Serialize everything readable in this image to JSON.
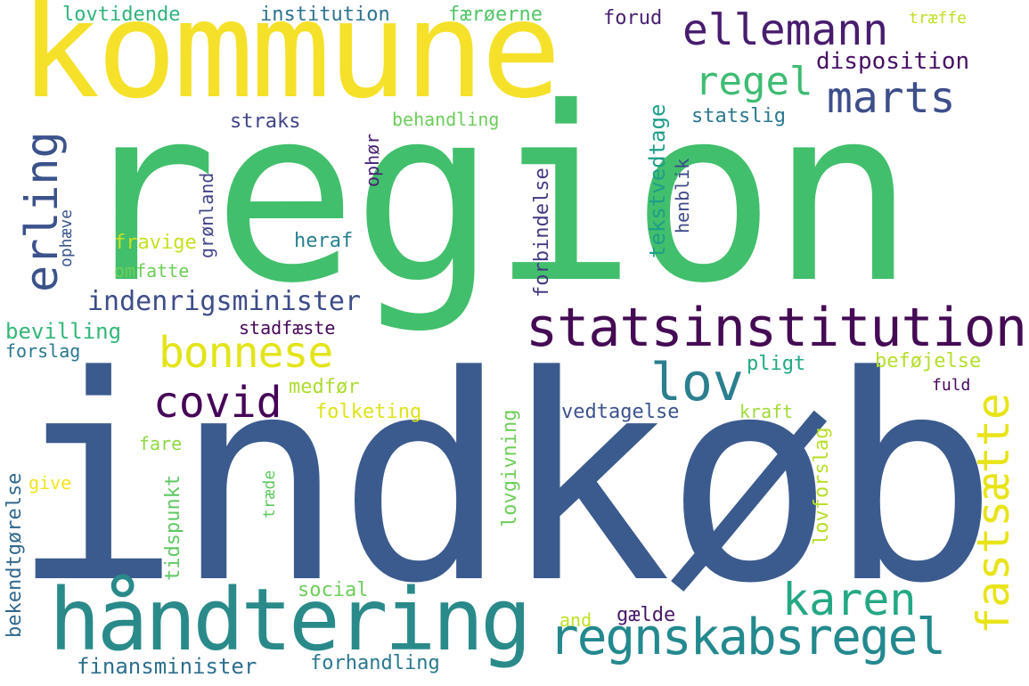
{
  "words": [
    {
      "text": "indkøb",
      "color": "#3b5b8e"
    },
    {
      "text": "region",
      "color": "#42bf6c"
    },
    {
      "text": "kommune",
      "color": "#f5e12a"
    },
    {
      "text": "håndtering",
      "color": "#2a8a8a"
    },
    {
      "text": "statsinstitution",
      "color": "#440b54"
    },
    {
      "text": "regnskabsregel",
      "color": "#23898e"
    },
    {
      "text": "ellemann",
      "color": "#481c6e"
    },
    {
      "text": "marts",
      "color": "#3d4e8a"
    },
    {
      "text": "karen",
      "color": "#24a884"
    },
    {
      "text": "bonnese",
      "color": "#e3e418"
    },
    {
      "text": "lov",
      "color": "#2b7f8e"
    },
    {
      "text": "covid",
      "color": "#450457"
    },
    {
      "text": "regel",
      "color": "#3fbc73"
    },
    {
      "text": "erling",
      "color": "#3b528b"
    },
    {
      "text": "fastsætte",
      "color": "#e8e419"
    },
    {
      "text": "indenrigsminister",
      "color": "#3e4c8a"
    },
    {
      "text": "disposition",
      "color": "#471164"
    },
    {
      "text": "lovtidende",
      "color": "#2fb47c"
    },
    {
      "text": "institution",
      "color": "#2c738e"
    },
    {
      "text": "færøerne",
      "color": "#52c569"
    },
    {
      "text": "forud",
      "color": "#482173"
    },
    {
      "text": "træffe",
      "color": "#bddf26"
    },
    {
      "text": "straks",
      "color": "#414487"
    },
    {
      "text": "behandling",
      "color": "#6ccd5a"
    },
    {
      "text": "statslig",
      "color": "#2a788e"
    },
    {
      "text": "heraf",
      "color": "#277f8e"
    },
    {
      "text": "fravige",
      "color": "#c8e020"
    },
    {
      "text": "omfatte",
      "color": "#6ece58"
    },
    {
      "text": "bevilling",
      "color": "#35b779"
    },
    {
      "text": "stadfæste",
      "color": "#46075a"
    },
    {
      "text": "forslag",
      "color": "#2a788e"
    },
    {
      "text": "medfør",
      "color": "#addc30"
    },
    {
      "text": "folketing",
      "color": "#dde318"
    },
    {
      "text": "pligt",
      "color": "#22a884"
    },
    {
      "text": "beføjelse",
      "color": "#b5de2b"
    },
    {
      "text": "fuld",
      "color": "#46085c"
    },
    {
      "text": "vedtagelse",
      "color": "#3b528b"
    },
    {
      "text": "kraft",
      "color": "#a0da39"
    },
    {
      "text": "fare",
      "color": "#90d743"
    },
    {
      "text": "give",
      "color": "#f1e51d"
    },
    {
      "text": "social",
      "color": "#6ccd5a"
    },
    {
      "text": "and",
      "color": "#c2df23"
    },
    {
      "text": "gælde",
      "color": "#48186a"
    },
    {
      "text": "finansminister",
      "color": "#2e6f8e"
    },
    {
      "text": "forhandling",
      "color": "#2a788e"
    },
    {
      "text": "ophør",
      "color": "#482374"
    },
    {
      "text": "grønland",
      "color": "#414487"
    },
    {
      "text": "forbindelse",
      "color": "#443983"
    },
    {
      "text": "tekstvedtage",
      "color": "#1f9e89"
    },
    {
      "text": "henblik",
      "color": "#3e4989"
    },
    {
      "text": "ophæve",
      "color": "#39568c"
    },
    {
      "text": "lovgivning",
      "color": "#6ece58"
    },
    {
      "text": "lovforslag",
      "color": "#b8de29"
    },
    {
      "text": "tidspunkt",
      "color": "#5ec962"
    },
    {
      "text": "træde",
      "color": "#5ec962"
    },
    {
      "text": "bekendtgørelse",
      "color": "#31688e"
    }
  ]
}
